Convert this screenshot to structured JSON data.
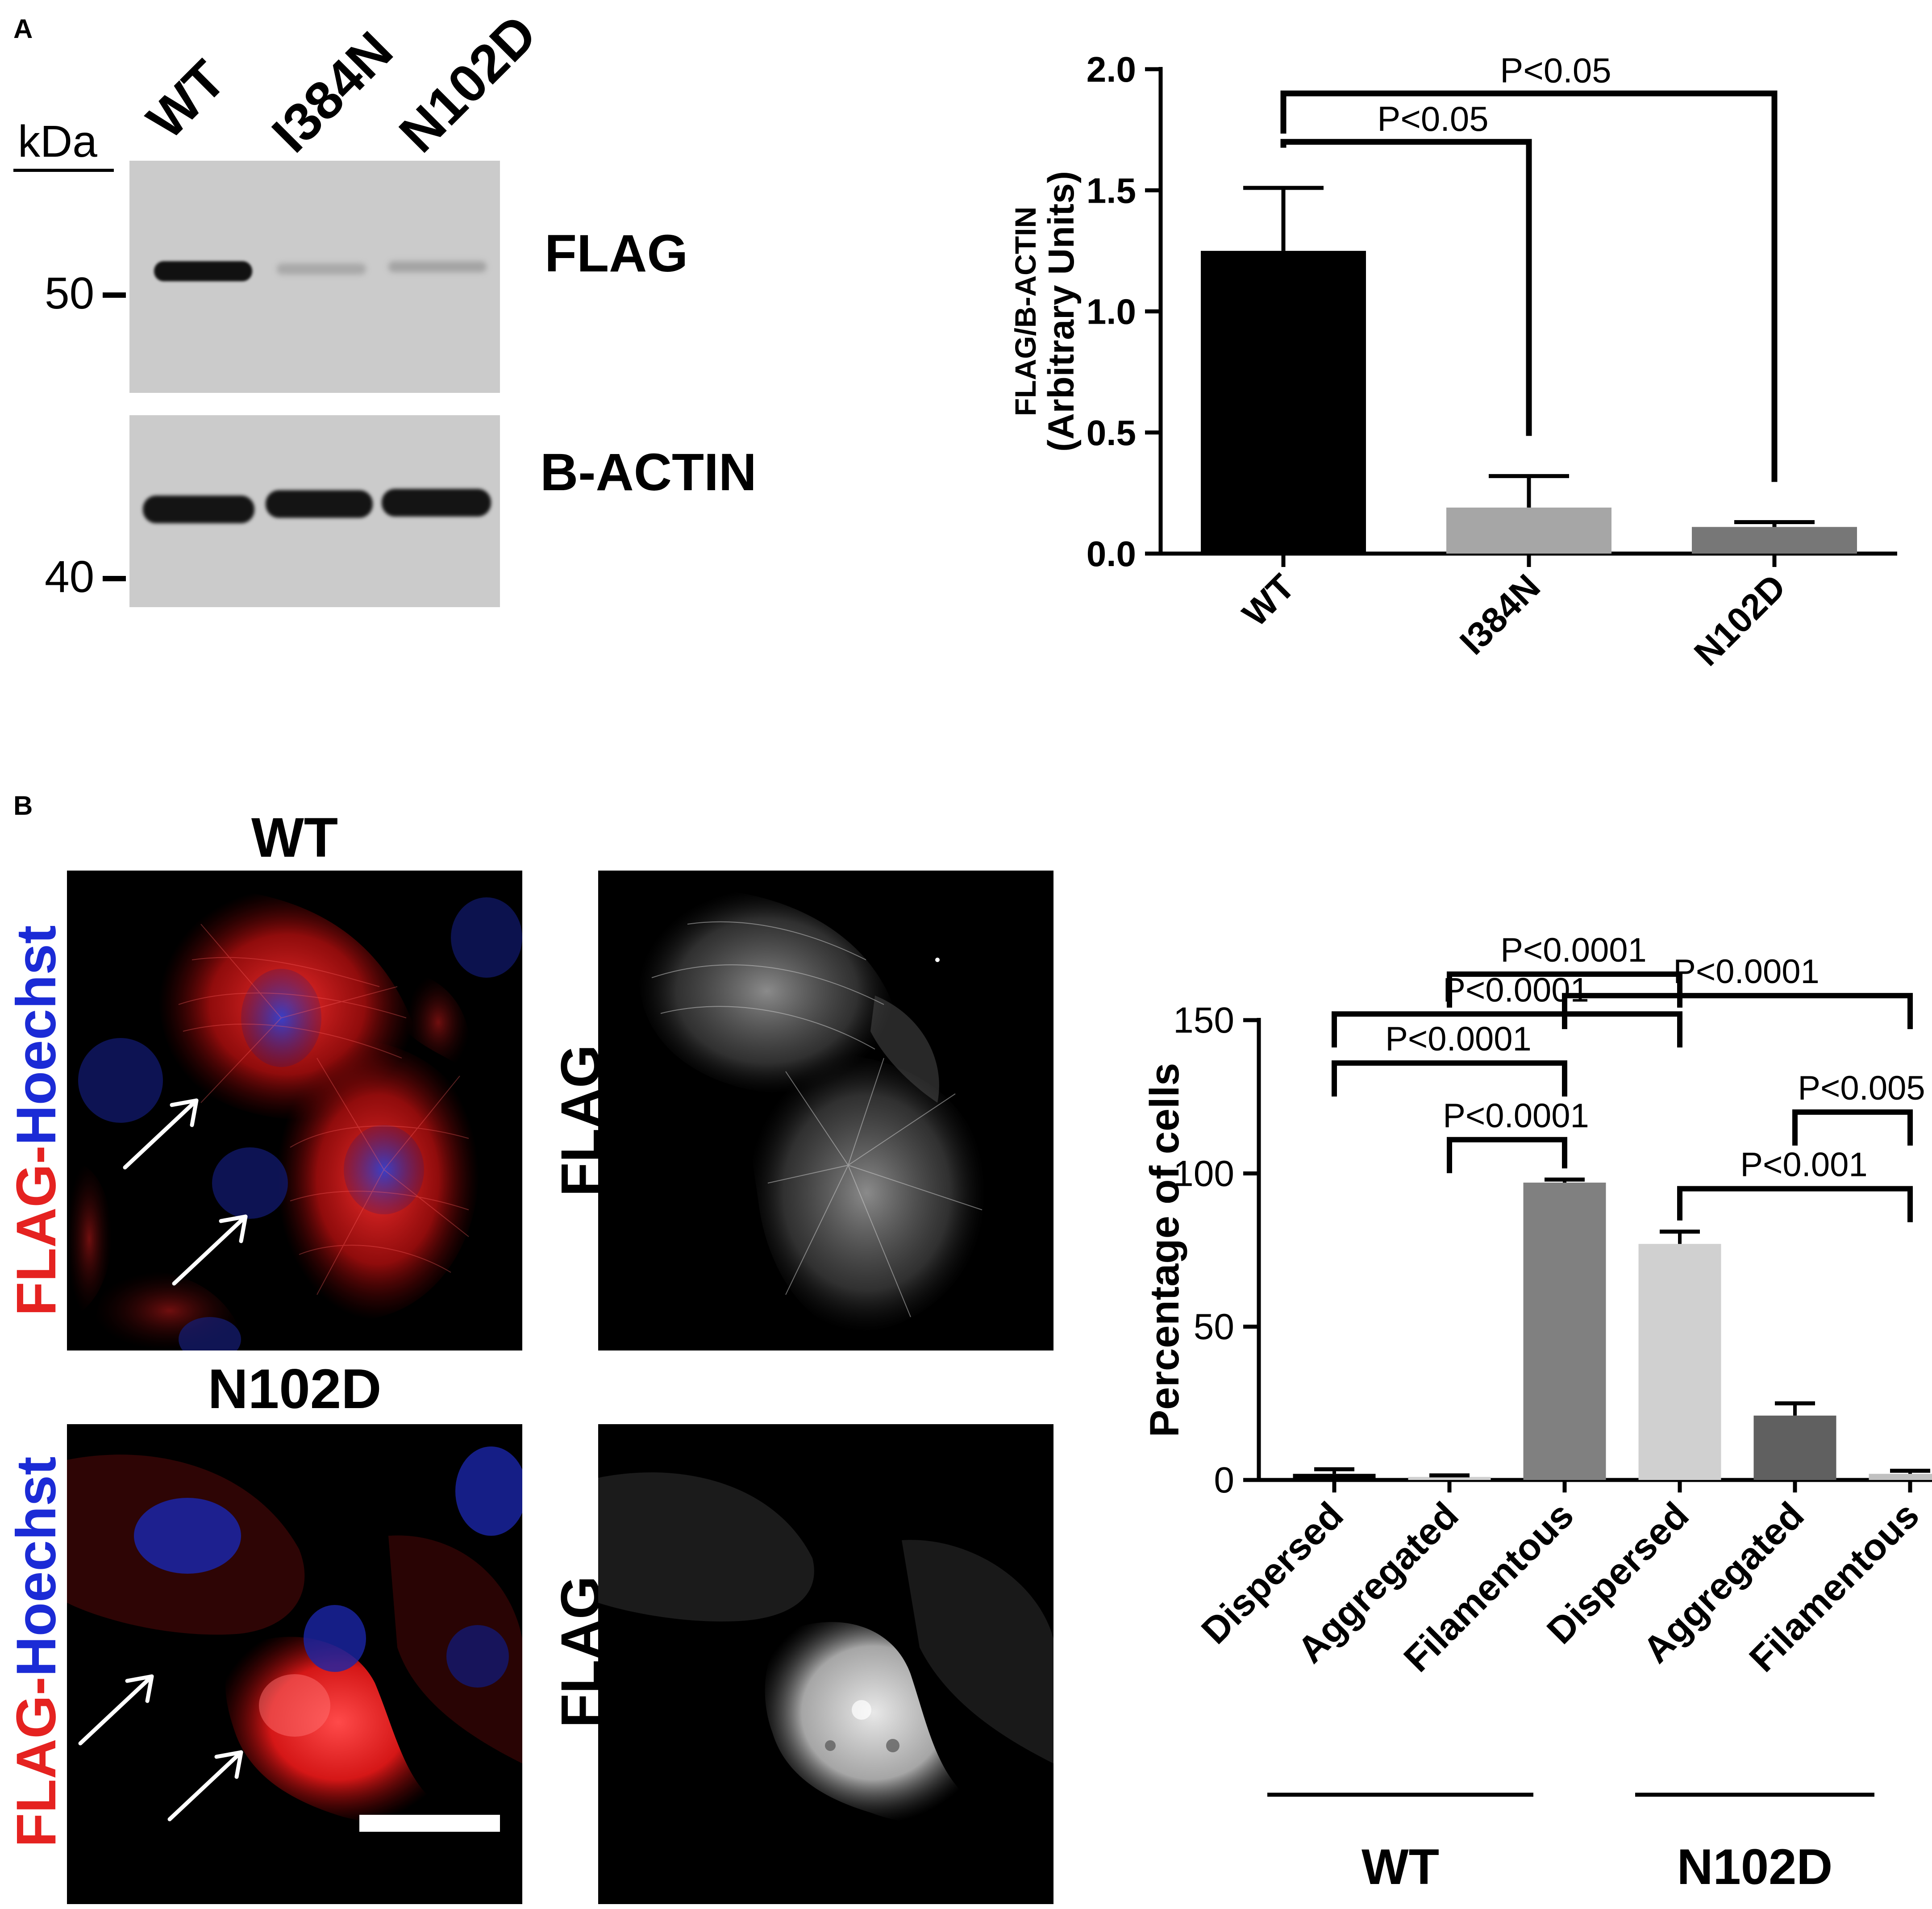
{
  "panel_a": {
    "letter": "A",
    "western": {
      "lanes": [
        "WT",
        "I384N",
        "N102D"
      ],
      "kda_label": "kDa",
      "markers": [
        "50",
        "40"
      ],
      "blot_labels": [
        "FLAG",
        "B-ACTIN"
      ]
    }
  },
  "panel_b": {
    "letter": "B",
    "micrographs": {
      "titles": [
        "WT",
        "N102D"
      ],
      "stain_flag": "FLAG",
      "stain_sep": "-",
      "stain_hoechst": "Hoechst",
      "right_label": "FLAG",
      "colors": {
        "flag_red": "#e52220",
        "hoechst_blue": "#1b2bd6"
      }
    },
    "groups": [
      "WT",
      "N102D"
    ]
  },
  "chart_data": [
    {
      "type": "bar",
      "title": "",
      "categories": [
        "WT",
        "I384N",
        "N102D"
      ],
      "values": [
        1.25,
        0.19,
        0.11
      ],
      "errors": [
        0.26,
        0.13,
        0.02
      ],
      "bar_colors": [
        "#000000",
        "#a6a6a6",
        "#777777"
      ],
      "ylabel_line1": "FLAG/B-ACTIN",
      "ylabel_line2": "(Arbitrary Units)",
      "ylim": [
        0,
        2.0
      ],
      "yticks": [
        "0.0",
        "0.5",
        "1.0",
        "1.5",
        "2.0"
      ],
      "comparisons": [
        {
          "from": "WT",
          "to": "I384N",
          "label": "P<0.05",
          "level": 1.7
        },
        {
          "from": "WT",
          "to": "N102D",
          "label": "P<0.05",
          "level": 1.9
        }
      ]
    },
    {
      "type": "bar",
      "title": "",
      "categories": [
        "Dispersed",
        "Aggregated",
        "Filamentous",
        "Dispersed",
        "Aggregated",
        "Filamentous"
      ],
      "groups": [
        "WT",
        "WT",
        "WT",
        "N102D",
        "N102D",
        "N102D"
      ],
      "values": [
        2,
        1,
        97,
        77,
        21,
        2
      ],
      "errors": [
        1.5,
        0.5,
        1,
        4,
        4,
        1
      ],
      "bar_colors": [
        "#000000",
        "#d0d0d0",
        "#808080",
        "#d0d0d0",
        "#606060",
        "#c0c0c0"
      ],
      "ylabel": "Percentage of cells",
      "ylim": [
        0,
        150
      ],
      "yticks": [
        "0",
        "50",
        "100",
        "150"
      ],
      "comparisons": [
        {
          "from": 1,
          "to": 3,
          "label": "P<0.0001",
          "level": 165
        },
        {
          "from": 2,
          "to": 5,
          "label": "P<0.0001",
          "level": 158
        },
        {
          "from": 0,
          "to": 3,
          "label": "P<0.0001",
          "level": 152
        },
        {
          "from": 0,
          "to": 2,
          "label": "P<0.0001",
          "level": 136
        },
        {
          "from": 1,
          "to": 2,
          "label": "P<0.0001",
          "level": 111
        },
        {
          "from": 4,
          "to": 5,
          "label": "P<0.005",
          "level": 120
        },
        {
          "from": 3,
          "to": 5,
          "label": "P<0.001",
          "level": 95
        }
      ]
    }
  ]
}
